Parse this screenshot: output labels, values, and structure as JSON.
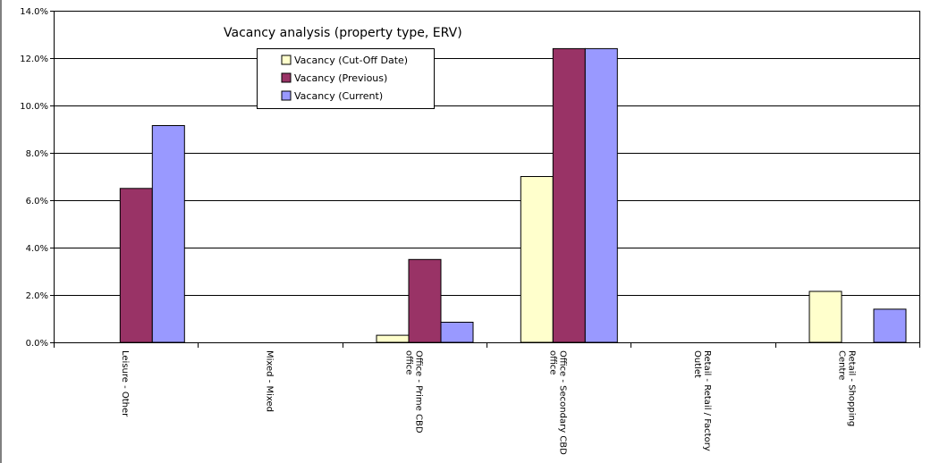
{
  "chart_data": {
    "type": "bar",
    "title": "Vacancy analysis (property type, ERV)",
    "xlabel": "",
    "ylabel": "",
    "ylim": [
      0,
      14
    ],
    "ytick_step": 2,
    "yticks": [
      "0.0%",
      "2.0%",
      "4.0%",
      "6.0%",
      "8.0%",
      "10.0%",
      "12.0%",
      "14.0%"
    ],
    "grid": true,
    "legend_position": "top-center",
    "categories": [
      [
        "Leisure - Other"
      ],
      [
        "Mixed - Mixed"
      ],
      [
        "Office - Prime CBD",
        "office"
      ],
      [
        "Office - Secondary CBD",
        "office"
      ],
      [
        "Retail - Retail / Factory",
        "Outlet"
      ],
      [
        "Retail - Shopping",
        "Centre"
      ]
    ],
    "series": [
      {
        "name": "Vacancy (Cut-Off Date)",
        "color": "#ffffcc",
        "values": [
          0,
          0,
          0.3,
          7.0,
          0,
          2.15
        ]
      },
      {
        "name": "Vacancy (Previous)",
        "color": "#993366",
        "values": [
          6.5,
          0,
          3.5,
          12.4,
          0,
          0
        ]
      },
      {
        "name": "Vacancy (Current)",
        "color": "#9999ff",
        "values": [
          9.15,
          0,
          0.85,
          12.4,
          0,
          1.4
        ]
      }
    ]
  }
}
